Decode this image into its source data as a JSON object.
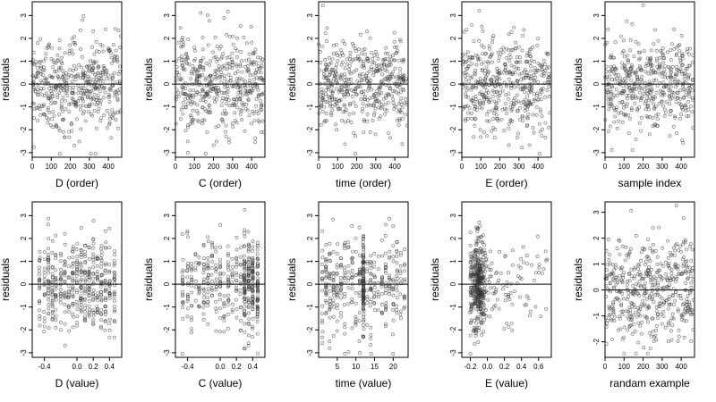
{
  "figure": {
    "residual_color": "#333333",
    "background": "#ffffff"
  },
  "chart_data": [
    {
      "type": "scatter",
      "xlabel": "D (order)",
      "ylabel": "residuals",
      "xlim": [
        0,
        470
      ],
      "ylim": [
        -3.2,
        3.6
      ],
      "xticks": [
        0,
        100,
        200,
        300,
        400
      ],
      "yticks": [
        -3,
        -2,
        -1,
        0,
        1,
        2,
        3
      ],
      "reference_line_y": 0,
      "n_points": 470,
      "point_distribution": "uniform index, residuals about N(0,1)"
    },
    {
      "type": "scatter",
      "xlabel": "C (order)",
      "ylabel": "residuals",
      "xlim": [
        0,
        470
      ],
      "ylim": [
        -3.2,
        3.6
      ],
      "xticks": [
        0,
        100,
        200,
        300,
        400
      ],
      "yticks": [
        -3,
        -2,
        -1,
        0,
        1,
        2,
        3
      ],
      "reference_line_y": 0,
      "n_points": 470,
      "point_distribution": "uniform index, residuals about N(0,1)"
    },
    {
      "type": "scatter",
      "xlabel": "time (order)",
      "ylabel": "residuals",
      "xlim": [
        0,
        470
      ],
      "ylim": [
        -3.2,
        3.6
      ],
      "xticks": [
        0,
        100,
        200,
        300,
        400
      ],
      "yticks": [
        -3,
        -2,
        -1,
        0,
        1,
        2,
        3
      ],
      "reference_line_y": 0,
      "n_points": 470,
      "point_distribution": "uniform index, residuals about N(0,1)"
    },
    {
      "type": "scatter",
      "xlabel": "E (order)",
      "ylabel": "residuals",
      "xlim": [
        0,
        470
      ],
      "ylim": [
        -3.2,
        3.6
      ],
      "xticks": [
        0,
        100,
        200,
        300,
        400
      ],
      "yticks": [
        -3,
        -2,
        -1,
        0,
        1,
        2,
        3
      ],
      "reference_line_y": 0,
      "n_points": 470,
      "point_distribution": "uniform index, residuals about N(0,1)"
    },
    {
      "type": "scatter",
      "xlabel": "sample index",
      "ylabel": "residuals",
      "xlim": [
        0,
        470
      ],
      "ylim": [
        -3.2,
        3.6
      ],
      "xticks": [
        0,
        100,
        200,
        300,
        400
      ],
      "yticks": [
        -3,
        -2,
        -1,
        0,
        1,
        2,
        3
      ],
      "reference_line_y": 0,
      "n_points": 470,
      "point_distribution": "uniform index, residuals about N(0,1)"
    },
    {
      "type": "scatter",
      "xlabel": "D (value)",
      "ylabel": "residuals",
      "xlim": [
        -0.55,
        0.55
      ],
      "ylim": [
        -3.2,
        3.6
      ],
      "xticks": [
        -0.4,
        0.0,
        0.2,
        0.4
      ],
      "xticklabels": [
        "-0.4",
        "0.0",
        "0.2",
        "0.4"
      ],
      "yticks": [
        -3,
        -2,
        -1,
        0,
        1,
        2,
        3
      ],
      "reference_line_y": 0,
      "n_points": 470,
      "point_distribution": "x on discrete levels between -0.5 and 0.5, residuals about N(0,1)"
    },
    {
      "type": "scatter",
      "xlabel": "C (value)",
      "ylabel": "residuals",
      "xlim": [
        -0.55,
        0.55
      ],
      "ylim": [
        -3.2,
        3.6
      ],
      "xticks": [
        -0.4,
        0.0,
        0.2,
        0.4
      ],
      "xticklabels": [
        "-0.4",
        "0.0",
        "0.2",
        "0.4"
      ],
      "yticks": [
        -3,
        -2,
        -1,
        0,
        1,
        2,
        3
      ],
      "reference_line_y": 0,
      "n_points": 470,
      "point_distribution": "x on discrete levels between -0.5 and 0.5, denser near 0.3-0.5"
    },
    {
      "type": "scatter",
      "xlabel": "time (value)",
      "ylabel": "residuals",
      "xlim": [
        0,
        24
      ],
      "ylim": [
        -3.2,
        3.6
      ],
      "xticks": [
        5,
        10,
        15,
        20
      ],
      "yticks": [
        -3,
        -2,
        -1,
        0,
        1,
        2,
        3
      ],
      "reference_line_y": 0,
      "n_points": 470,
      "point_distribution": "x on integer levels 1-24, strong column near 12"
    },
    {
      "type": "scatter",
      "xlabel": "E (value)",
      "ylabel": "residuals",
      "xlim": [
        -0.3,
        0.75
      ],
      "ylim": [
        -3.2,
        3.6
      ],
      "xticks": [
        -0.2,
        0.0,
        0.2,
        0.4,
        0.6
      ],
      "xticklabels": [
        "-0.2",
        "0.0",
        "0.2",
        "0.4",
        "0.6"
      ],
      "yticks": [
        -3,
        -2,
        -1,
        0,
        1,
        2,
        3
      ],
      "reference_line_y": 0,
      "n_points": 470,
      "point_distribution": "x heavily concentrated near -0.1, right tail to 0.7"
    },
    {
      "type": "scatter",
      "xlabel": "randam example",
      "ylabel": "residuals",
      "xlim": [
        0,
        470
      ],
      "ylim": [
        -2.6,
        3.4
      ],
      "xticks": [
        0,
        100,
        200,
        300,
        400
      ],
      "yticks": [
        -2,
        -1,
        0,
        1,
        2,
        3
      ],
      "reference_line_y": 0,
      "n_points": 470,
      "point_distribution": "uniform index, residuals about N(0,1)"
    }
  ]
}
